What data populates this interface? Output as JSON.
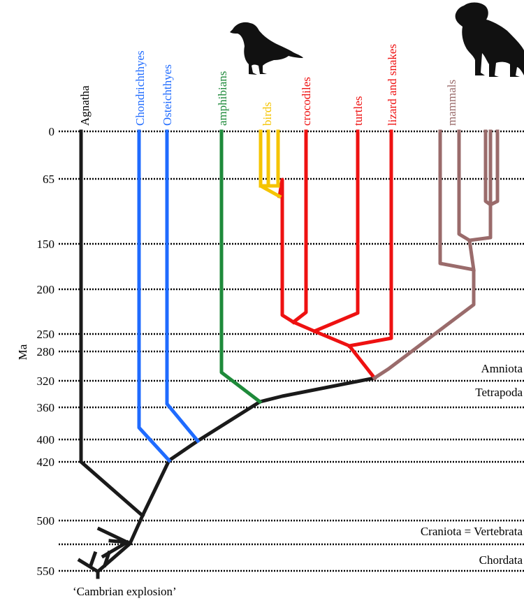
{
  "colors": {
    "black": "#1a1a1a",
    "blue": "#1f6bff",
    "green": "#1e8a3a",
    "yellow": "#f5c400",
    "red": "#ee1111",
    "brown": "#9a6b6b",
    "silhouette": "#111111"
  },
  "axis": {
    "title": "Ma",
    "ticks": [
      "0",
      "65",
      "150",
      "200",
      "250",
      "280",
      "320",
      "360",
      "400",
      "420",
      "500",
      "550"
    ]
  },
  "taxa": {
    "agnatha": "Agnatha",
    "chondrichthyes": "Chondrichthyes",
    "osteichthyes": "Osteichthyes",
    "amphibians": "amphibians",
    "birds": "birds",
    "crocodiles": "crocodiles",
    "turtles": "turtles",
    "lizards": "lizard and snakes",
    "mammals": "mammals"
  },
  "clades": {
    "amniota": "Amniota",
    "tetrapoda": "Tetrapoda",
    "craniota": "Craniota = Vertebrata",
    "chordata": "Chordata"
  },
  "footnote": "‘Cambrian explosion’",
  "silhouettes": {
    "bird": "bird-silhouette-icon",
    "monkey": "monkey-silhouette-icon"
  }
}
